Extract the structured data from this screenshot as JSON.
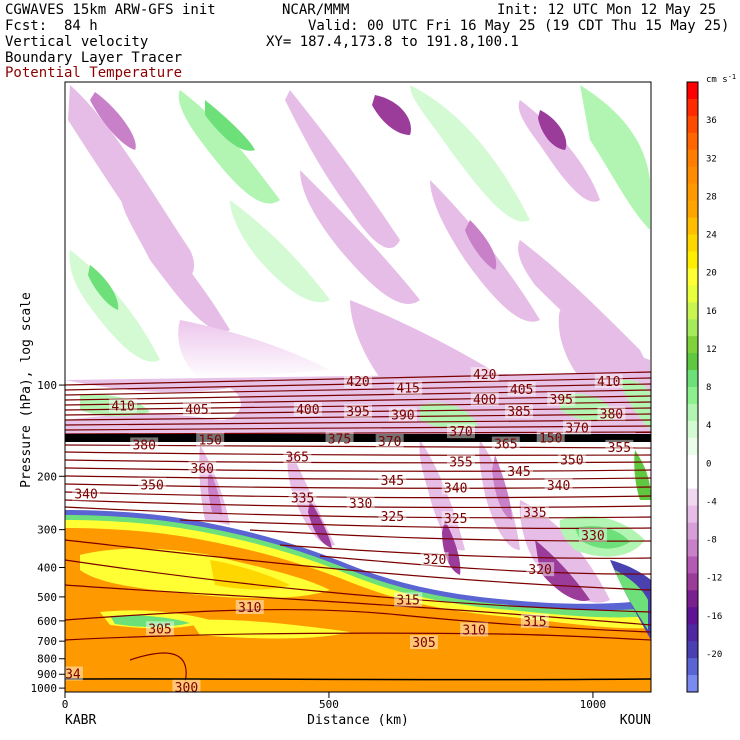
{
  "header": {
    "model": "CGWAVES 15km ARW-GFS init",
    "org": "NCAR/MMM",
    "init": "Init: 12 UTC Mon 12 May 25",
    "fcst_label": "Fcst:",
    "fcst_value": "84 h",
    "valid": "Valid: 00 UTC Fri 16 May 25 (19 CDT Thu 15 May 25)",
    "field1": "Vertical velocity",
    "field2": "Boundary Layer Tracer",
    "field3": "Potential Temperature",
    "xy": "XY= 187.4,173.8 to 191.8,100.1"
  },
  "colors": {
    "theta": "#7a0000",
    "field3_text": "#8b0000",
    "frame": "#000000"
  },
  "chart_data": {
    "type": "heatmap",
    "xlabel": "Distance (km)",
    "ylabel": "Pressure (hPa), log scale",
    "x_ticks": [
      "0",
      "500",
      "1000"
    ],
    "x_tick_values": [
      0,
      500,
      1000
    ],
    "xlim": [
      0,
      1110
    ],
    "y_ticks": [
      "100",
      "200",
      "300",
      "400",
      "500",
      "600",
      "700",
      "800",
      "900",
      "1000"
    ],
    "y_tick_values": [
      100,
      200,
      300,
      400,
      500,
      600,
      700,
      800,
      900,
      1000
    ],
    "ylim": [
      1030,
      10
    ],
    "y_scale": "log",
    "endpoints": {
      "left": "KABR",
      "right": "KOUN"
    },
    "colorbar": {
      "unit": "cm s",
      "unit_exp": "-1",
      "labels": [
        "36",
        "32",
        "28",
        "24",
        "20",
        "16",
        "12",
        "8",
        "4",
        "0",
        "-4",
        "-8",
        "-12",
        "-16",
        "-20"
      ],
      "label_values": [
        36,
        32,
        28,
        24,
        20,
        16,
        12,
        8,
        4,
        0,
        -4,
        -8,
        -12,
        -16,
        -20
      ],
      "bins": [
        {
          "color": "#ff0000"
        },
        {
          "color": "#ff2a00"
        },
        {
          "color": "#ff4b00"
        },
        {
          "color": "#ff6600"
        },
        {
          "color": "#ff7d00"
        },
        {
          "color": "#ff8c00"
        },
        {
          "color": "#ff9900"
        },
        {
          "color": "#ffa500"
        },
        {
          "color": "#ffbf00"
        },
        {
          "color": "#ffd700"
        },
        {
          "color": "#ffee00"
        },
        {
          "color": "#ffff33"
        },
        {
          "color": "#eaff3c"
        },
        {
          "color": "#c8f550"
        },
        {
          "color": "#a6eb5a"
        },
        {
          "color": "#7fd23a"
        },
        {
          "color": "#5fc840"
        },
        {
          "color": "#6ee07a"
        },
        {
          "color": "#8cf08c"
        },
        {
          "color": "#b2f5b2"
        },
        {
          "color": "#d4fad4"
        },
        {
          "color": "#eafcea"
        },
        {
          "color": "#ffffff"
        },
        {
          "color": "#ffffff"
        },
        {
          "color": "#f0d8f0"
        },
        {
          "color": "#e6bde6"
        },
        {
          "color": "#d79fd7"
        },
        {
          "color": "#c880c8"
        },
        {
          "color": "#b45ab4"
        },
        {
          "color": "#9b3c9b"
        },
        {
          "color": "#7a2090"
        },
        {
          "color": "#5f1496"
        },
        {
          "color": "#5028a0"
        },
        {
          "color": "#4a40b0"
        },
        {
          "color": "#5a64d2"
        },
        {
          "color": "#7a8aee"
        }
      ]
    },
    "theta_contours": [
      {
        "label": "300",
        "x": 230,
        "p": 990
      },
      {
        "label": "305",
        "x": 180,
        "p": 635
      },
      {
        "label": "305",
        "x": 680,
        "p": 705
      },
      {
        "label": "310",
        "x": 350,
        "p": 540
      },
      {
        "label": "310",
        "x": 775,
        "p": 640
      },
      {
        "label": "315",
        "x": 650,
        "p": 510
      },
      {
        "label": "315",
        "x": 890,
        "p": 600
      },
      {
        "label": "320",
        "x": 700,
        "p": 375
      },
      {
        "label": "320",
        "x": 900,
        "p": 405
      },
      {
        "label": "325",
        "x": 620,
        "p": 270
      },
      {
        "label": "325",
        "x": 740,
        "p": 275
      },
      {
        "label": "330",
        "x": 560,
        "p": 245
      },
      {
        "label": "330",
        "x": 1000,
        "p": 312
      },
      {
        "label": "335",
        "x": 450,
        "p": 235
      },
      {
        "label": "335",
        "x": 890,
        "p": 262
      },
      {
        "label": "340",
        "x": 40,
        "p": 228
      },
      {
        "label": "340",
        "x": 740,
        "p": 218
      },
      {
        "label": "340",
        "x": 935,
        "p": 214
      },
      {
        "label": "345",
        "x": 620,
        "p": 206
      },
      {
        "label": "345",
        "x": 860,
        "p": 192
      },
      {
        "label": "350",
        "x": 165,
        "p": 213
      },
      {
        "label": "350",
        "x": 960,
        "p": 176
      },
      {
        "label": "355",
        "x": 750,
        "p": 179
      },
      {
        "label": "355",
        "x": 1050,
        "p": 160
      },
      {
        "label": "360",
        "x": 260,
        "p": 188
      },
      {
        "label": "365",
        "x": 440,
        "p": 172
      },
      {
        "label": "365",
        "x": 835,
        "p": 156
      },
      {
        "label": "370",
        "x": 615,
        "p": 153
      },
      {
        "label": "370",
        "x": 750,
        "p": 142
      },
      {
        "label": "370",
        "x": 970,
        "p": 138
      },
      {
        "label": "375",
        "x": 520,
        "p": 150
      },
      {
        "label": "380",
        "x": 150,
        "p": 157
      },
      {
        "label": "380",
        "x": 1035,
        "p": 124
      },
      {
        "label": "385",
        "x": 860,
        "p": 122
      },
      {
        "label": "390",
        "x": 640,
        "p": 125
      },
      {
        "label": "395",
        "x": 555,
        "p": 122
      },
      {
        "label": "395",
        "x": 940,
        "p": 111
      },
      {
        "label": "400",
        "x": 460,
        "p": 120
      },
      {
        "label": "400",
        "x": 795,
        "p": 111
      },
      {
        "label": "405",
        "x": 250,
        "p": 120
      },
      {
        "label": "405",
        "x": 865,
        "p": 103
      },
      {
        "label": "410",
        "x": 110,
        "p": 117
      },
      {
        "label": "410",
        "x": 1030,
        "p": 97
      },
      {
        "label": "415",
        "x": 650,
        "p": 102
      },
      {
        "label": "420",
        "x": 555,
        "p": 97
      },
      {
        "label": "420",
        "x": 795,
        "p": 92
      },
      {
        "label": "34",
        "x": 15,
        "p": 895
      },
      {
        "label": "150",
        "x": 275,
        "p": 151
      },
      {
        "label": "150",
        "x": 920,
        "p": 149
      }
    ]
  }
}
